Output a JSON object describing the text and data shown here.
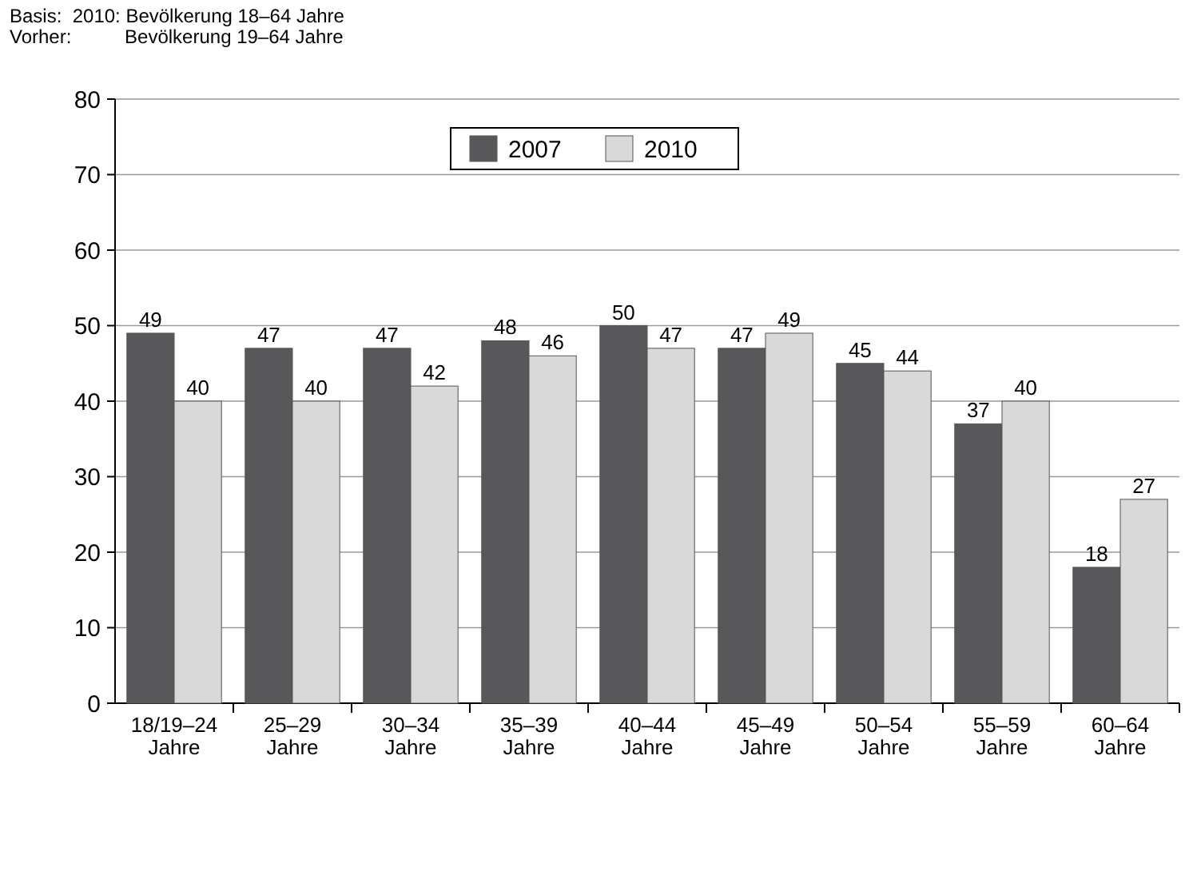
{
  "chart_data": {
    "type": "bar",
    "annotations": [
      "Basis:  2010: Bevölkerung 18–64 Jahre",
      "Vorher:          Bevölkerung 19–64 Jahre"
    ],
    "categories": [
      "18/19–24\nJahre",
      "25–29\nJahre",
      "30–34\nJahre",
      "35–39\nJahre",
      "40–44\nJahre",
      "45–49\nJahre",
      "50–54\nJahre",
      "55–59\nJahre",
      "60–64\nJahre"
    ],
    "series": [
      {
        "name": "2007",
        "color": "#58585a",
        "values": [
          49,
          47,
          47,
          48,
          50,
          47,
          45,
          37,
          18
        ]
      },
      {
        "name": "2010",
        "color": "#d9d9d9",
        "values": [
          40,
          40,
          42,
          46,
          47,
          49,
          44,
          40,
          27
        ]
      }
    ],
    "ylim": [
      0,
      80
    ],
    "yticks": [
      0,
      10,
      20,
      30,
      40,
      50,
      60,
      70,
      80
    ],
    "grid": "y",
    "legend": "top",
    "data_labels": true
  }
}
